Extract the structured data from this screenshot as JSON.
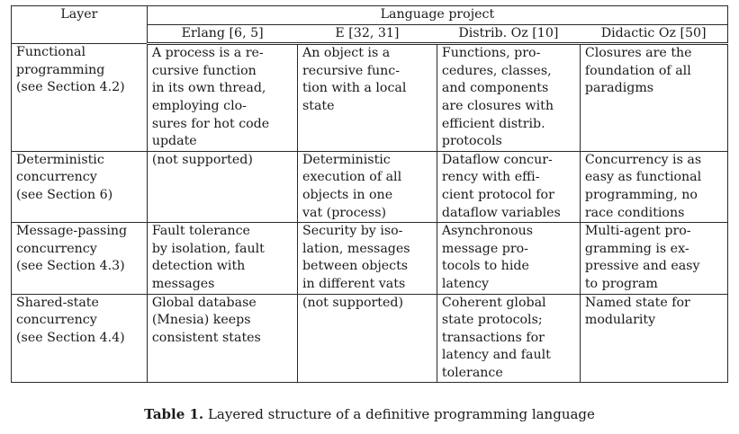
{
  "table": {
    "layer_header": "Layer",
    "group_header": "Language project",
    "columns": [
      "Erlang [6, 5]",
      "E [32, 31]",
      "Distrib. Oz [10]",
      "Didactic Oz [50]"
    ],
    "rows": [
      {
        "layer": [
          "Functional",
          "programming",
          "(see Section 4.2)"
        ],
        "cells": [
          [
            "A process is a re-",
            "cursive function",
            "in its own thread,",
            "employing clo-",
            "sures for hot code",
            "update"
          ],
          [
            "An object is a",
            "recursive func-",
            "tion with a local",
            "state"
          ],
          [
            "Functions, pro-",
            "cedures, classes,",
            "and components",
            "are closures with",
            "efficient distrib.",
            "protocols"
          ],
          [
            "Closures are the",
            "foundation of all",
            "paradigms"
          ]
        ]
      },
      {
        "layer": [
          "Deterministic",
          "concurrency",
          "(see Section 6)"
        ],
        "cells": [
          [
            "(not supported)"
          ],
          [
            "Deterministic",
            "execution of all",
            "objects in one",
            "vat (process)"
          ],
          [
            "Dataflow concur-",
            "rency with effi-",
            "cient protocol for",
            "dataflow variables"
          ],
          [
            "Concurrency is as",
            "easy as functional",
            "programming, no",
            "race conditions"
          ]
        ]
      },
      {
        "layer": [
          "Message-passing",
          "concurrency",
          "(see Section 4.3)"
        ],
        "cells": [
          [
            "Fault tolerance",
            "by isolation, fault",
            "detection with",
            "messages"
          ],
          [
            "Security by iso-",
            "lation, messages",
            "between objects",
            "in different vats"
          ],
          [
            "Asynchronous",
            "message pro-",
            "tocols to hide",
            "latency"
          ],
          [
            "Multi-agent pro-",
            "gramming is ex-",
            "pressive and easy",
            "to program"
          ]
        ]
      },
      {
        "layer": [
          "Shared-state",
          "concurrency",
          "(see Section 4.4)"
        ],
        "cells": [
          [
            "Global database",
            "(Mnesia) keeps",
            "consistent states"
          ],
          [
            "(not supported)"
          ],
          [
            "Coherent global",
            "state protocols;",
            "transactions for",
            "latency and fault",
            "tolerance"
          ],
          [
            "Named state for",
            "modularity"
          ]
        ]
      }
    ]
  },
  "caption": {
    "label": "Table 1.",
    "text": "Layered structure of a definitive programming language"
  }
}
